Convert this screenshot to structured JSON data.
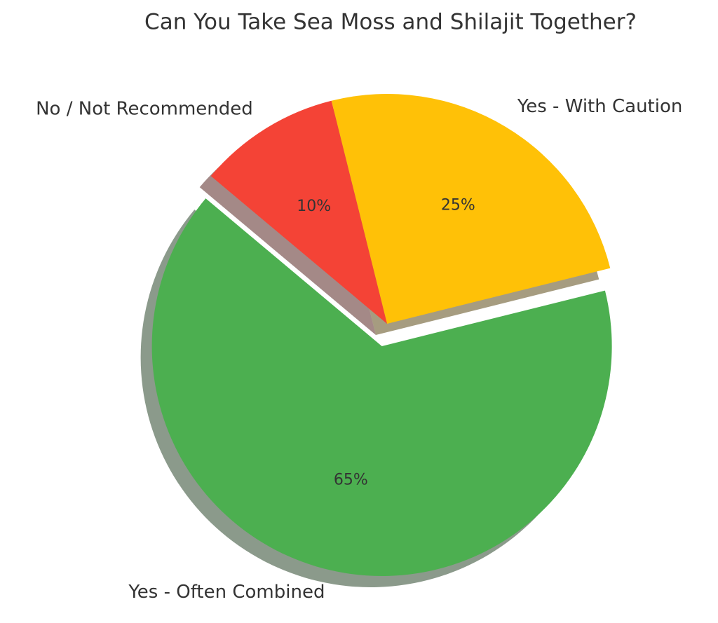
{
  "chart_data": {
    "type": "pie",
    "title": "Can You Take Sea Moss and Shilajit Together?",
    "categories": [
      "Yes - Often Combined",
      "Yes - With Caution",
      "No / Not Recommended"
    ],
    "values": [
      65,
      25,
      10
    ],
    "value_labels": [
      "65%",
      "25%",
      "10%"
    ],
    "colors": [
      "#4caf50",
      "#ffc107",
      "#f44336"
    ],
    "shadow": true
  }
}
